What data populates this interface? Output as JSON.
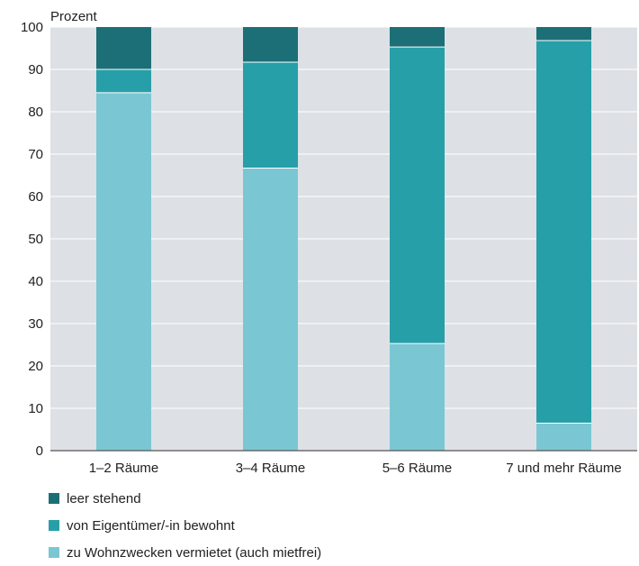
{
  "chart_data": {
    "type": "bar",
    "stacked": true,
    "ylabel": "Prozent",
    "ylim": [
      0,
      100
    ],
    "yticks": [
      0,
      10,
      20,
      30,
      40,
      50,
      60,
      70,
      80,
      90,
      100
    ],
    "grid": true,
    "legend_position": "bottom-left",
    "categories": [
      "1–2 Räume",
      "3–4 Räume",
      "5–6 Räume",
      "7 und mehr Räume"
    ],
    "series": [
      {
        "name": "zu Wohnzwecken vermietet (auch mietfrei)",
        "color": "#7ac7d3",
        "values": [
          84.5,
          66.7,
          25.3,
          6.5
        ]
      },
      {
        "name": "von Eigentümer/-in bewohnt",
        "color": "#279fa8",
        "values": [
          5.5,
          25.0,
          70.0,
          90.3
        ]
      },
      {
        "name": "leer stehend",
        "color": "#1c6f77",
        "values": [
          10.0,
          8.3,
          4.7,
          3.2
        ]
      }
    ],
    "legend_order": [
      2,
      1,
      0
    ]
  },
  "colors": {
    "plot_background": "#dde1e6",
    "gridline": "#ffffff",
    "axis": "#555555"
  }
}
